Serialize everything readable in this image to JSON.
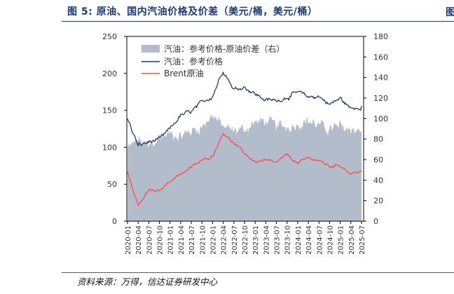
{
  "header": {
    "title": "图 5:  原油、国内汽油价格及价差（美元/桶，美元/桶）",
    "edge_mark": "图"
  },
  "footer": {
    "source": "资料来源：万得，信达证券研发中心"
  },
  "colors": {
    "gasoline": "#1f3b73",
    "brent": "#ff4a4a",
    "spread": "#b3bccb",
    "title": "#1a3a78"
  },
  "chart_data": {
    "type": "line+area",
    "title": "原油、国内汽油价格及价差（美元/桶，美元/桶）",
    "left_axis": {
      "min": 0,
      "max": 250,
      "ticks": [
        "0",
        "50",
        "100",
        "150",
        "200",
        "250"
      ]
    },
    "right_axis": {
      "min": 0,
      "max": 180,
      "ticks": [
        "0",
        "20",
        "40",
        "60",
        "80",
        "100",
        "120",
        "140",
        "160",
        "180"
      ]
    },
    "categories": [
      "2020-01",
      "2020-04",
      "2020-07",
      "2020-10",
      "2021-01",
      "2021-04",
      "2021-07",
      "2021-10",
      "2022-01",
      "2022-04",
      "2022-07",
      "2022-10",
      "2023-01",
      "2023-04",
      "2023-07",
      "2023-10",
      "2024-01",
      "2024-04",
      "2024-07",
      "2024-10",
      "2025-01",
      "2025-04",
      "2025-07"
    ],
    "legend": [
      "汽油：参考价格-原油价差（右）",
      "汽油：参考价格",
      "Brent原油"
    ],
    "series": [
      {
        "name": "汽油：参考价格-原油价差（右）",
        "axis": "right",
        "kind": "area",
        "values": [
          70,
          80,
          72,
          82,
          85,
          83,
          88,
          92,
          104,
          92,
          88,
          90,
          96,
          98,
          93,
          92,
          95,
          98,
          93,
          90,
          92,
          90,
          88
        ]
      },
      {
        "name": "汽油：参考价格",
        "axis": "left",
        "kind": "line",
        "values": [
          138,
          102,
          107,
          110,
          125,
          143,
          148,
          160,
          170,
          205,
          178,
          182,
          172,
          164,
          163,
          168,
          174,
          168,
          169,
          158,
          166,
          152,
          156
        ]
      },
      {
        "name": "Brent原油",
        "axis": "left",
        "kind": "line",
        "values": [
          66,
          20,
          42,
          40,
          55,
          64,
          73,
          82,
          88,
          120,
          105,
          92,
          80,
          82,
          79,
          90,
          78,
          86,
          82,
          74,
          76,
          64,
          68
        ]
      }
    ]
  }
}
